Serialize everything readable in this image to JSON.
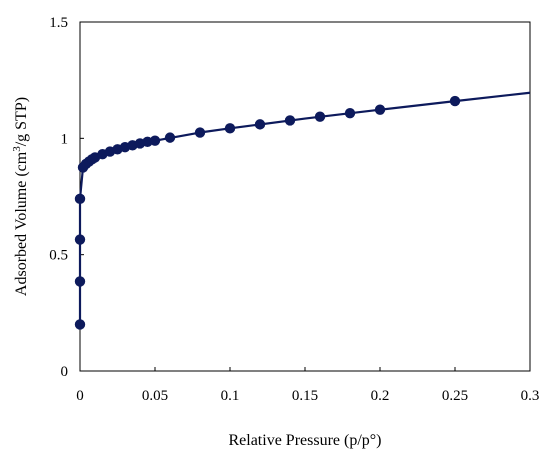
{
  "chart_data": {
    "type": "scatter",
    "title": "",
    "xlabel": "Relative Pressure (p/p°)",
    "ylabel_main": "Adsorbed Volume (cm",
    "ylabel_sup": "3",
    "ylabel_rest": "/g STP)",
    "xlim": [
      0,
      0.3
    ],
    "ylim": [
      0,
      1.5
    ],
    "x_ticks": [
      0,
      0.05,
      0.1,
      0.15,
      0.2,
      0.25,
      0.3
    ],
    "x_tick_labels": [
      "0",
      "0.05",
      "0.1",
      "0.15",
      "0.2",
      "0.25",
      "0.3"
    ],
    "y_ticks": [
      0,
      0.5,
      1,
      1.5
    ],
    "y_tick_labels": [
      "0",
      "0.5",
      "1",
      "1.5"
    ],
    "grid": false,
    "legend": "none",
    "color": "#0d1a5c",
    "series": [
      {
        "points": [
          [
            0.0,
            0.2
          ],
          [
            0.0,
            0.385
          ],
          [
            0.0,
            0.565
          ],
          [
            0.0,
            0.74
          ],
          [
            0.002,
            0.875
          ],
          [
            0.004,
            0.89
          ],
          [
            0.006,
            0.9
          ],
          [
            0.008,
            0.91
          ],
          [
            0.01,
            0.918
          ],
          [
            0.015,
            0.932
          ],
          [
            0.02,
            0.943
          ],
          [
            0.025,
            0.953
          ],
          [
            0.03,
            0.962
          ],
          [
            0.035,
            0.97
          ],
          [
            0.04,
            0.978
          ],
          [
            0.045,
            0.985
          ],
          [
            0.05,
            0.99
          ],
          [
            0.06,
            1.003
          ],
          [
            0.08,
            1.025
          ],
          [
            0.1,
            1.043
          ],
          [
            0.12,
            1.06
          ],
          [
            0.14,
            1.077
          ],
          [
            0.16,
            1.093
          ],
          [
            0.18,
            1.108
          ],
          [
            0.2,
            1.123
          ],
          [
            0.25,
            1.16
          ]
        ],
        "fit_line": [
          [
            0.0,
            0.2
          ],
          [
            0.0,
            0.74
          ],
          [
            0.002,
            0.875
          ],
          [
            0.005,
            0.895
          ],
          [
            0.01,
            0.918
          ],
          [
            0.02,
            0.943
          ],
          [
            0.03,
            0.962
          ],
          [
            0.05,
            0.99
          ],
          [
            0.08,
            1.025
          ],
          [
            0.1,
            1.043
          ],
          [
            0.15,
            1.085
          ],
          [
            0.2,
            1.123
          ],
          [
            0.25,
            1.16
          ],
          [
            0.3,
            1.196
          ]
        ]
      }
    ]
  }
}
